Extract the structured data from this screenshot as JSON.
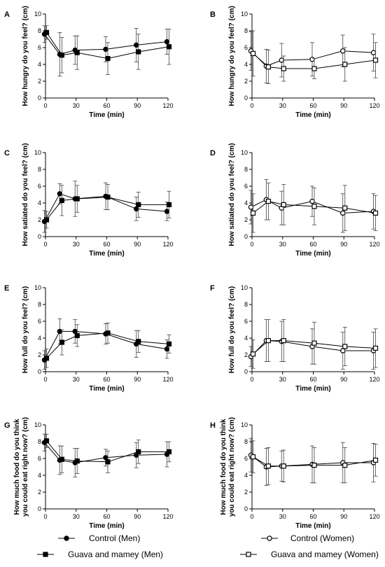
{
  "chart_data": [
    {
      "panel": "A",
      "type": "line",
      "xlabel": "Time (min)",
      "ylabel": "How hungry do you feel? (cm)",
      "x": [
        0,
        15,
        30,
        60,
        90,
        120
      ],
      "xlim": [
        0,
        120
      ],
      "ylim": [
        0,
        10
      ],
      "xticks": [
        0,
        30,
        60,
        90,
        120
      ],
      "yticks": [
        0,
        2,
        4,
        6,
        8,
        10
      ],
      "series": [
        {
          "name": "Control (Men)",
          "marker": "filled-circle",
          "values": [
            7.6,
            5.2,
            5.7,
            5.8,
            6.3,
            6.7
          ],
          "errors": [
            1.0,
            2.6,
            1.7,
            1.5,
            2.0,
            1.5
          ]
        },
        {
          "name": "Guava and mamey (Men)",
          "marker": "filled-square",
          "values": [
            7.8,
            5.1,
            5.4,
            4.7,
            5.5,
            6.1
          ],
          "errors": [
            0.8,
            2.1,
            2.0,
            1.9,
            2.1,
            2.1
          ]
        }
      ]
    },
    {
      "panel": "B",
      "type": "line",
      "xlabel": "Time (min)",
      "ylabel": "How hungry do you feel? (cm)",
      "x": [
        0,
        15,
        30,
        60,
        90,
        120
      ],
      "xlim": [
        0,
        120
      ],
      "ylim": [
        0,
        10
      ],
      "xticks": [
        0,
        30,
        60,
        90,
        120
      ],
      "yticks": [
        0,
        2,
        4,
        6,
        8,
        10
      ],
      "series": [
        {
          "name": "Control (Women)",
          "marker": "open-circle",
          "values": [
            5.6,
            3.8,
            4.5,
            4.6,
            5.6,
            5.4
          ],
          "errors": [
            2.3,
            2.0,
            2.0,
            2.0,
            1.9,
            2.2
          ]
        },
        {
          "name": "Guava and mamey (Women)",
          "marker": "open-square",
          "values": [
            5.3,
            3.7,
            3.5,
            3.5,
            4.0,
            4.5
          ],
          "errors": [
            2.7,
            2.0,
            1.5,
            1.2,
            2.0,
            2.1
          ]
        }
      ]
    },
    {
      "panel": "C",
      "type": "line",
      "xlabel": "Time (min)",
      "ylabel": "How satiated do you feel? (cm)",
      "x": [
        0,
        15,
        30,
        60,
        90,
        120
      ],
      "xlim": [
        0,
        120
      ],
      "ylim": [
        0,
        10
      ],
      "xticks": [
        0,
        30,
        60,
        90,
        120
      ],
      "yticks": [
        0,
        2,
        4,
        6,
        8,
        10
      ],
      "series": [
        {
          "name": "Control (Men)",
          "marker": "filled-circle",
          "values": [
            1.8,
            5.1,
            4.5,
            4.8,
            3.3,
            3.0
          ],
          "errors": [
            1.3,
            1.2,
            2.1,
            1.6,
            1.4,
            1.1
          ]
        },
        {
          "name": "Guava and mamey (Men)",
          "marker": "filled-square",
          "values": [
            2.0,
            4.3,
            4.5,
            4.7,
            3.8,
            3.8
          ],
          "errors": [
            1.0,
            1.8,
            1.6,
            1.5,
            1.5,
            1.6
          ]
        }
      ]
    },
    {
      "panel": "D",
      "type": "line",
      "xlabel": "Time (min)",
      "ylabel": "How satiated do you feel? (cm)",
      "x": [
        0,
        15,
        30,
        60,
        90,
        120
      ],
      "xlim": [
        0,
        120
      ],
      "ylim": [
        0,
        10
      ],
      "xticks": [
        0,
        30,
        60,
        90,
        120
      ],
      "yticks": [
        0,
        2,
        4,
        6,
        8,
        10
      ],
      "series": [
        {
          "name": "Control (Women)",
          "marker": "open-circle",
          "values": [
            3.5,
            4.4,
            3.4,
            4.2,
            2.8,
            3.0
          ],
          "errors": [
            2.0,
            2.4,
            2.0,
            1.8,
            2.3,
            2.1
          ]
        },
        {
          "name": "Guava and mamey (Women)",
          "marker": "open-square",
          "values": [
            2.8,
            4.2,
            3.8,
            3.6,
            3.4,
            2.8
          ],
          "errors": [
            2.3,
            2.2,
            2.4,
            2.2,
            2.7,
            2.1
          ]
        }
      ]
    },
    {
      "panel": "E",
      "type": "line",
      "xlabel": "Time (min)",
      "ylabel": "How full do you feel? (cm)",
      "x": [
        0,
        15,
        30,
        60,
        90,
        120
      ],
      "xlim": [
        0,
        120
      ],
      "ylim": [
        0,
        10
      ],
      "xticks": [
        0,
        30,
        60,
        90,
        120
      ],
      "yticks": [
        0,
        2,
        4,
        6,
        8,
        10
      ],
      "series": [
        {
          "name": "Control (Men)",
          "marker": "filled-circle",
          "values": [
            1.4,
            4.8,
            4.8,
            4.5,
            3.3,
            2.7
          ],
          "errors": [
            1.1,
            1.5,
            1.4,
            1.2,
            1.6,
            1.1
          ]
        },
        {
          "name": "Guava and mamey (Men)",
          "marker": "filled-square",
          "values": [
            1.6,
            3.5,
            4.3,
            4.6,
            3.6,
            3.3
          ],
          "errors": [
            1.1,
            1.5,
            1.3,
            1.2,
            1.3,
            1.1
          ]
        }
      ]
    },
    {
      "panel": "F",
      "type": "line",
      "xlabel": "Time (min)",
      "ylabel": "How full do you feel? (cm)",
      "x": [
        0,
        15,
        30,
        60,
        90,
        120
      ],
      "xlim": [
        0,
        120
      ],
      "ylim": [
        0,
        10
      ],
      "xticks": [
        0,
        30,
        60,
        90,
        120
      ],
      "yticks": [
        0,
        2,
        4,
        6,
        8,
        10
      ],
      "series": [
        {
          "name": "Control (Women)",
          "marker": "open-circle",
          "values": [
            1.8,
            3.7,
            3.6,
            3.0,
            2.5,
            2.5
          ],
          "errors": [
            1.2,
            2.5,
            2.4,
            2.1,
            2.2,
            2.2
          ]
        },
        {
          "name": "Guava and mamey (Women)",
          "marker": "open-square",
          "values": [
            2.1,
            3.7,
            3.7,
            3.4,
            3.0,
            2.8
          ],
          "errors": [
            1.7,
            2.5,
            2.5,
            2.5,
            2.3,
            2.3
          ]
        }
      ]
    },
    {
      "panel": "G",
      "type": "line",
      "xlabel": "Time (min)",
      "ylabel": "How much food do you think you could eat right now? (cm)",
      "x": [
        0,
        15,
        30,
        60,
        90,
        120
      ],
      "xlim": [
        0,
        120
      ],
      "ylim": [
        0,
        10
      ],
      "xticks": [
        0,
        30,
        60,
        90,
        120
      ],
      "yticks": [
        0,
        2,
        4,
        6,
        8,
        10
      ],
      "series": [
        {
          "name": "Control (Men)",
          "marker": "filled-circle",
          "values": [
            7.9,
            5.8,
            5.5,
            6.1,
            6.4,
            6.5
          ],
          "errors": [
            1.0,
            1.7,
            1.7,
            1.0,
            1.5,
            1.5
          ]
        },
        {
          "name": "Guava and mamey (Men)",
          "marker": "filled-square",
          "values": [
            8.1,
            5.9,
            5.7,
            5.6,
            6.8,
            6.8
          ],
          "errors": [
            0.8,
            1.6,
            1.5,
            1.3,
            1.4,
            1.2
          ]
        }
      ]
    },
    {
      "panel": "H",
      "type": "line",
      "xlabel": "Time (min)",
      "ylabel": "How much food do you think you could eat right now? (cm)",
      "x": [
        0,
        15,
        30,
        60,
        90,
        120
      ],
      "xlim": [
        0,
        120
      ],
      "ylim": [
        0,
        10
      ],
      "xticks": [
        0,
        30,
        60,
        90,
        120
      ],
      "yticks": [
        0,
        2,
        4,
        6,
        8,
        10
      ],
      "series": [
        {
          "name": "Control (Women)",
          "marker": "open-circle",
          "values": [
            6.4,
            5.0,
            5.1,
            5.3,
            5.5,
            5.5
          ],
          "errors": [
            2.0,
            2.2,
            1.8,
            2.2,
            2.4,
            2.3
          ]
        },
        {
          "name": "Guava and mamey (Women)",
          "marker": "open-square",
          "values": [
            6.2,
            5.1,
            5.1,
            5.2,
            5.2,
            5.8
          ],
          "errors": [
            1.9,
            2.2,
            1.9,
            2.1,
            2.1,
            1.9
          ]
        }
      ]
    }
  ],
  "legend": {
    "items": [
      {
        "label": "Control (Men)",
        "marker": "filled-circle"
      },
      {
        "label": "Control (Women)",
        "marker": "open-circle"
      },
      {
        "label": "Guava and mamey (Men)",
        "marker": "filled-square"
      },
      {
        "label": "Guava and mamey (Women)",
        "marker": "open-square"
      }
    ]
  }
}
